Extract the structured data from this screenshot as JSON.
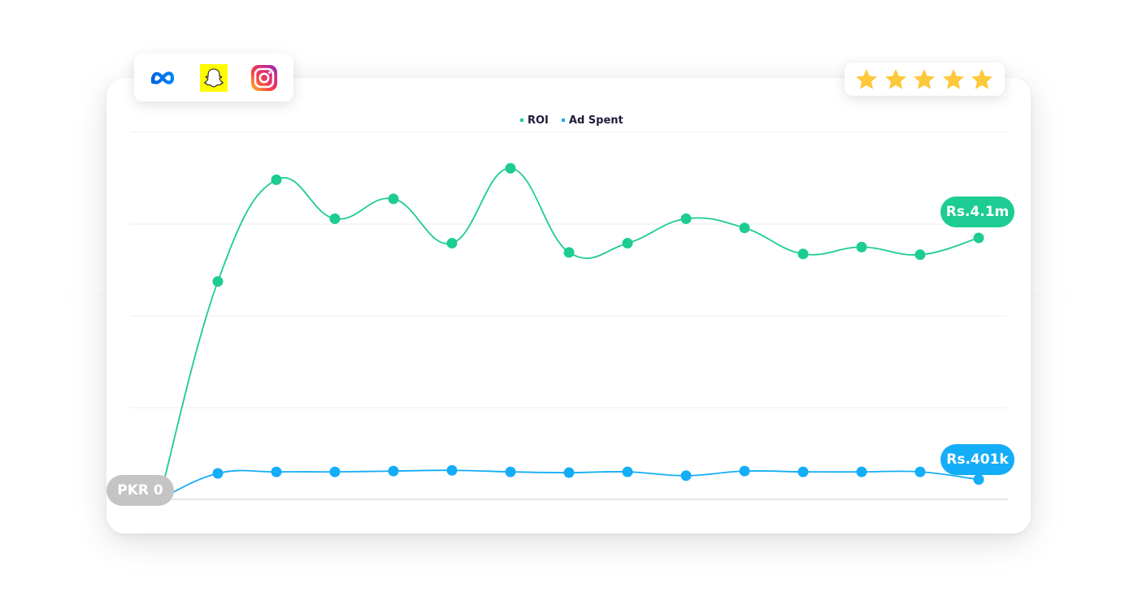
{
  "chart_data": {
    "type": "line",
    "title": "",
    "xlabel": "",
    "ylabel": "",
    "x": [
      0,
      1,
      2,
      3,
      4,
      5,
      6,
      7,
      8,
      9,
      10,
      11,
      12,
      13,
      14
    ],
    "ylim": [
      0,
      4.8
    ],
    "y_gridlines": [
      0,
      1.2,
      2.4,
      3.6,
      4.8
    ],
    "grid": true,
    "legend_position": "top-center",
    "series": [
      {
        "name": "ROI",
        "color": "#1ccc92",
        "values": [
          0,
          2.85,
          4.18,
          3.67,
          3.93,
          3.35,
          4.33,
          3.23,
          3.35,
          3.67,
          3.55,
          3.21,
          3.3,
          3.2,
          3.42
        ]
      },
      {
        "name": "Ad Spent",
        "color": "#14adf7",
        "values": [
          0,
          0.34,
          0.36,
          0.36,
          0.37,
          0.38,
          0.36,
          0.35,
          0.36,
          0.31,
          0.37,
          0.36,
          0.36,
          0.36,
          0.26
        ]
      }
    ],
    "annotations": {
      "roi_end_label": "Rs.4.1m",
      "ad_end_label": "Rs.401k",
      "zero_label": "PKR 0"
    },
    "annotation_colors": {
      "zero": "#c4c4c4"
    }
  },
  "platforms": [
    {
      "name": "meta-icon"
    },
    {
      "name": "snapchat-icon"
    },
    {
      "name": "instagram-icon"
    }
  ],
  "rating": {
    "stars": 5,
    "max": 5,
    "color": "#fdc83a"
  }
}
